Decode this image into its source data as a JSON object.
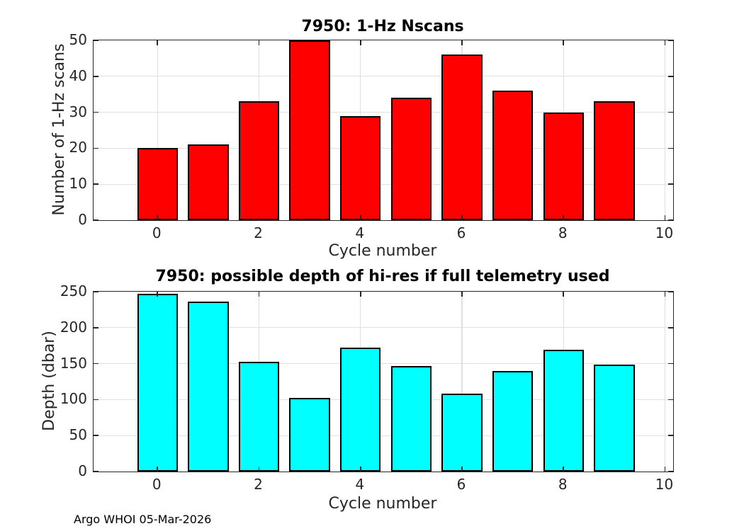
{
  "figure": {
    "footer": "Argo WHOI 05-Mar-2026"
  },
  "style": {
    "background": "#ffffff",
    "grid_color": "#e0e0e0",
    "axis_color": "#262626",
    "tick_label_color": "#262626",
    "title_color": "#000000",
    "bar_edge_color": "#000000"
  },
  "chart_data": [
    {
      "type": "bar",
      "title": "7950: 1-Hz Nscans",
      "xlabel": "Cycle number",
      "ylabel": "Number of 1-Hz scans",
      "categories": [
        0,
        1,
        2,
        3,
        4,
        5,
        6,
        7,
        8,
        9
      ],
      "values": [
        20,
        21,
        33,
        50,
        29,
        34,
        46,
        36,
        30,
        33
      ],
      "bar_color": "#ff0000",
      "bar_width": 0.8,
      "xlim": [
        -1.26,
        10.16
      ],
      "ylim": [
        0,
        50
      ],
      "xticks": [
        0,
        2,
        4,
        6,
        8,
        10
      ],
      "yticks": [
        0,
        10,
        20,
        30,
        40,
        50
      ],
      "grid": true,
      "legend": null
    },
    {
      "type": "bar",
      "title": "7950: possible depth of hi-res if full telemetry used",
      "xlabel": "Cycle number",
      "ylabel": "Depth (dbar)",
      "categories": [
        0,
        1,
        2,
        3,
        4,
        5,
        6,
        7,
        8,
        9
      ],
      "values": [
        247,
        236,
        153,
        102,
        172,
        147,
        108,
        140,
        169,
        149
      ],
      "bar_color": "#00ffff",
      "bar_width": 0.8,
      "xlim": [
        -1.26,
        10.16
      ],
      "ylim": [
        0,
        250
      ],
      "xticks": [
        0,
        2,
        4,
        6,
        8,
        10
      ],
      "yticks": [
        0,
        50,
        100,
        150,
        200,
        250
      ],
      "grid": true,
      "legend": null
    }
  ]
}
